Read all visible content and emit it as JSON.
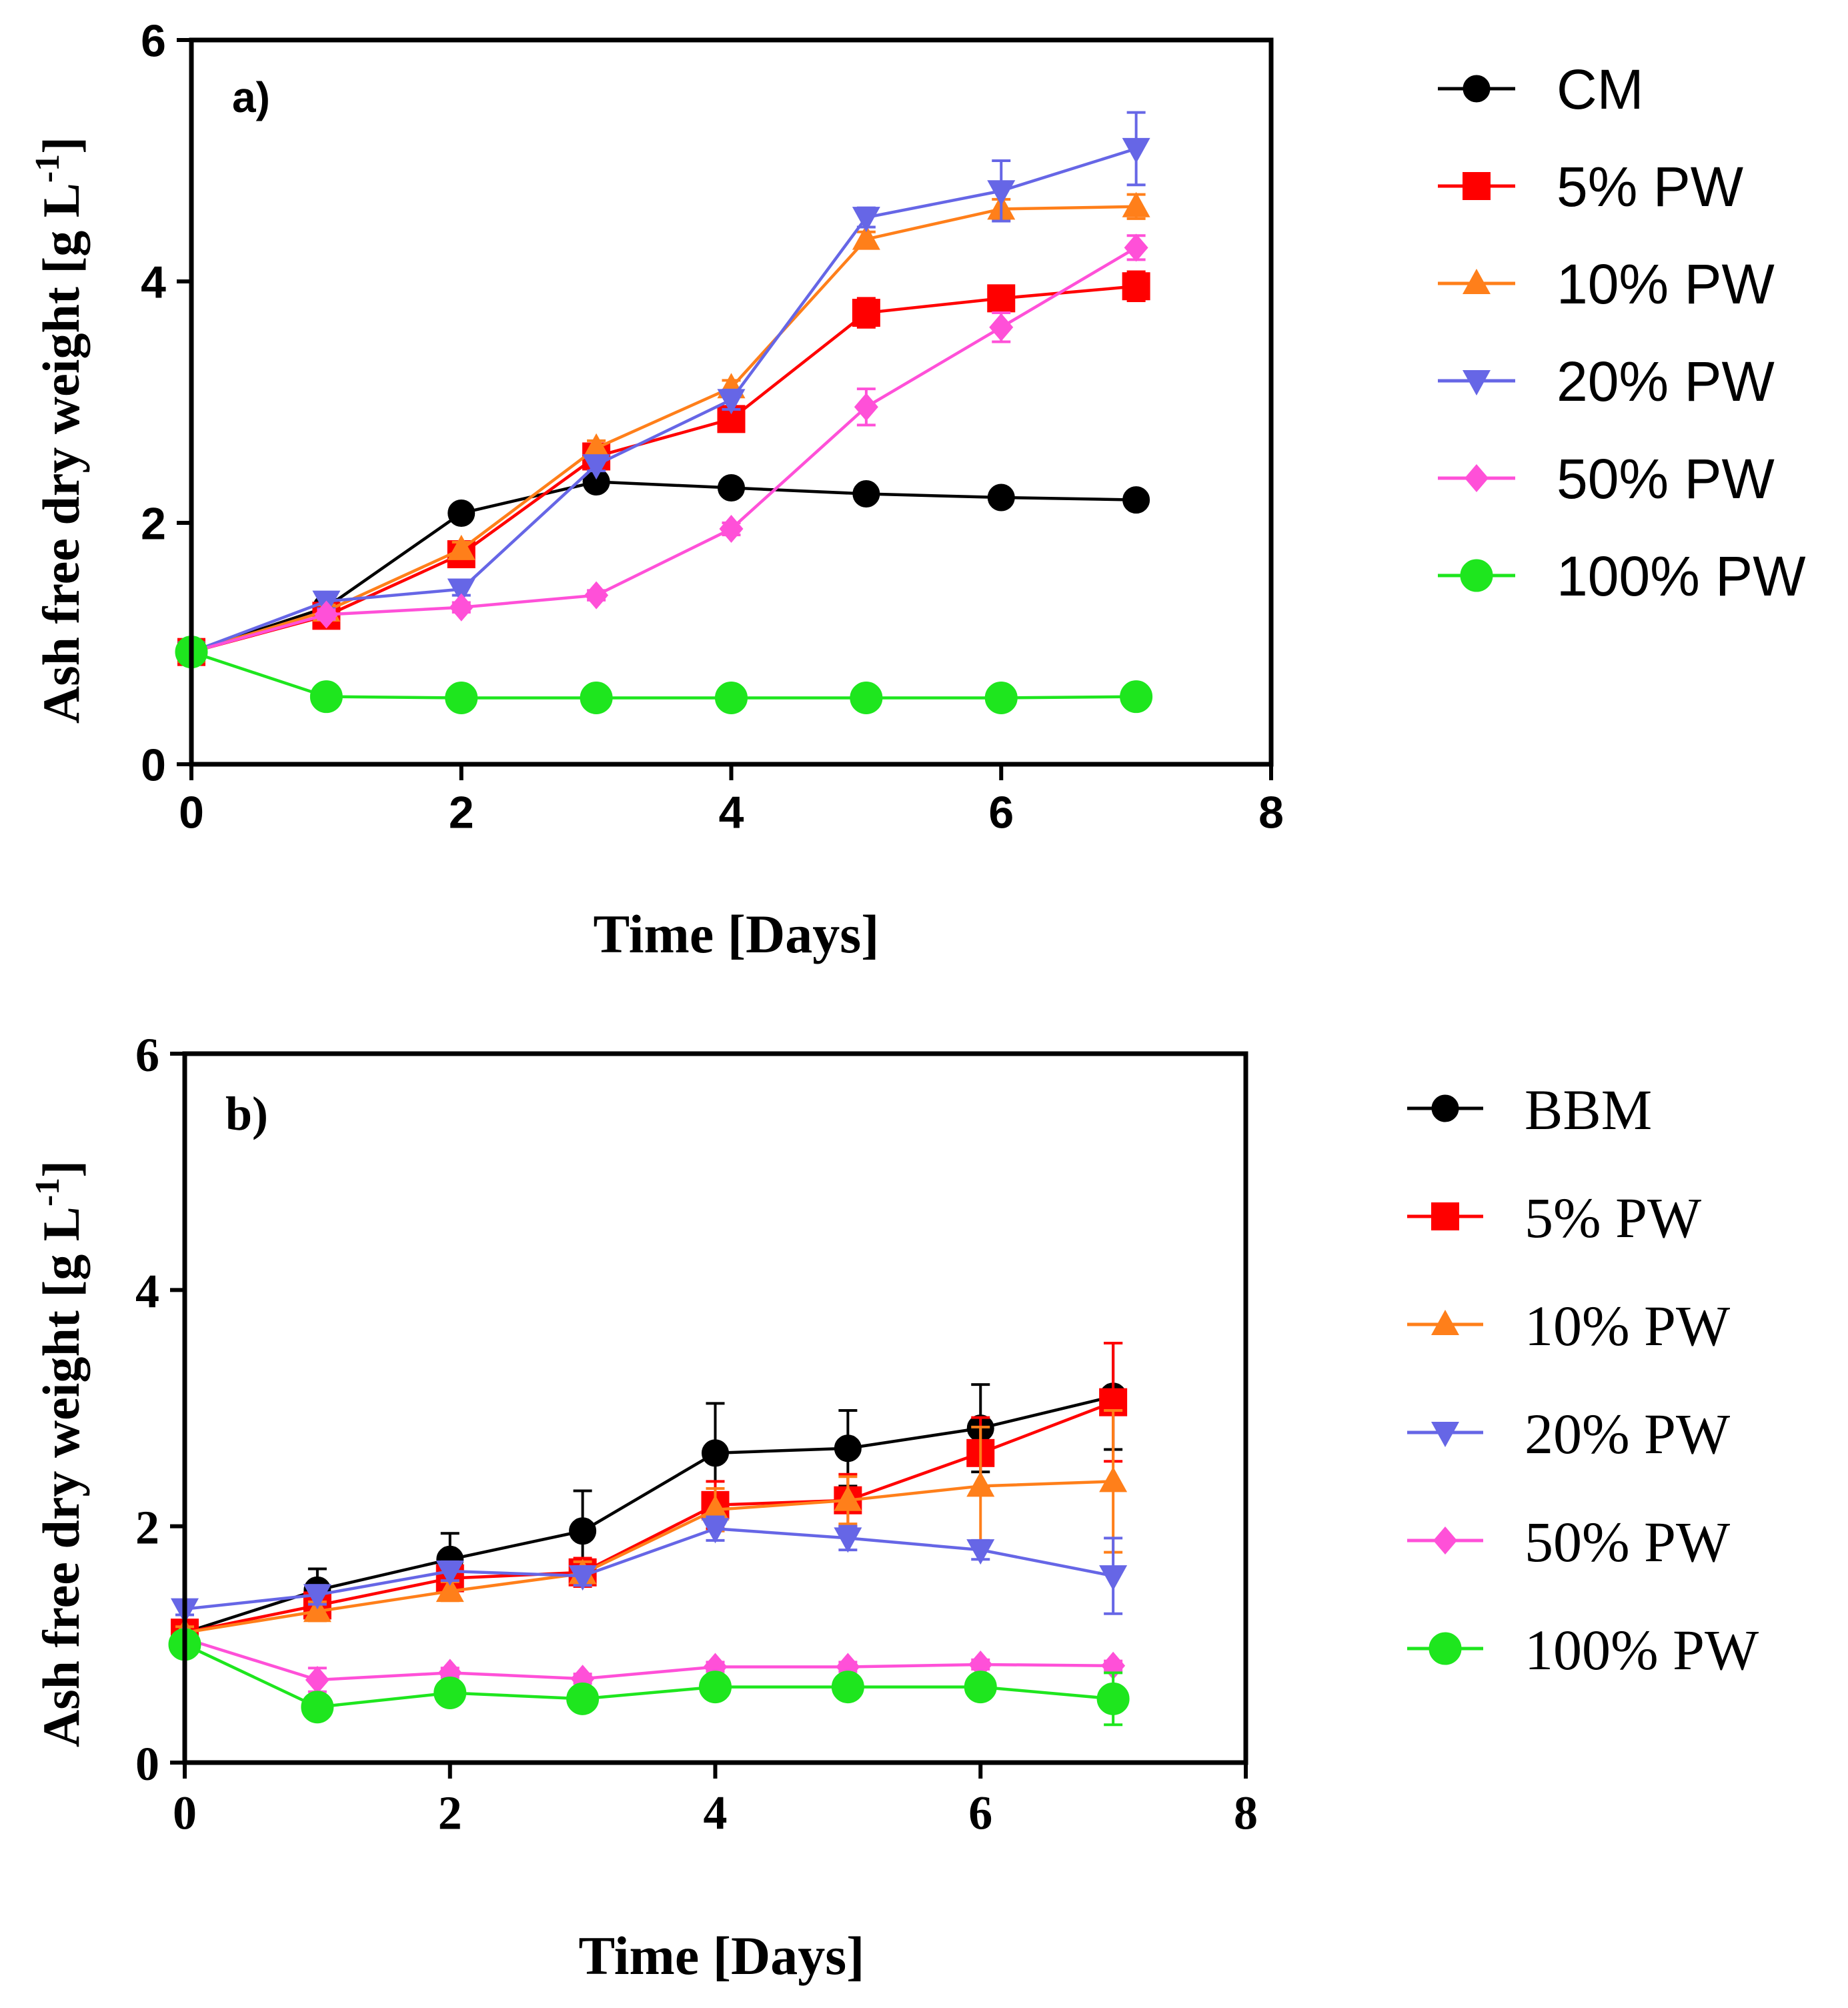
{
  "figure": {
    "chart_data": [
      {
        "type": "line",
        "panel": "a)",
        "title": "",
        "xlabel": "Time [Days]",
        "ylabel": "Ash free dry weight [g L-1]",
        "ylabel_main": "Ash free dry weight [g L",
        "ylabel_sup": "-1",
        "ylabel_end": "]",
        "xlim": [
          0,
          8
        ],
        "ylim": [
          0,
          6
        ],
        "xticks": [
          0,
          2,
          4,
          6,
          8
        ],
        "yticks": [
          0,
          2,
          4,
          6
        ],
        "x": [
          0,
          1,
          2,
          3,
          4,
          5,
          6,
          7
        ],
        "legend_position": "right",
        "series": [
          {
            "name": "CM",
            "color": "#000000",
            "marker": "circle",
            "values": [
              0.93,
              1.3,
              2.08,
              2.34,
              2.29,
              2.24,
              2.21,
              2.19
            ],
            "errors": [
              0.04,
              0.05,
              0.04,
              0.05,
              0.03,
              0.03,
              0.03,
              0.03
            ]
          },
          {
            "name": "5% PW",
            "color": "#ff0000",
            "marker": "square",
            "values": [
              0.93,
              1.23,
              1.74,
              2.55,
              2.86,
              3.74,
              3.86,
              3.96
            ],
            "errors": [
              0.04,
              0.05,
              0.06,
              0.08,
              0.08,
              0.12,
              0.08,
              0.12
            ]
          },
          {
            "name": "10% PW",
            "color": "#ff7f1a",
            "marker": "triangle-up",
            "values": [
              0.93,
              1.27,
              1.78,
              2.62,
              3.12,
              4.35,
              4.6,
              4.62
            ],
            "errors": [
              0.04,
              0.05,
              0.06,
              0.06,
              0.06,
              0.06,
              0.08,
              0.1
            ]
          },
          {
            "name": "20% PW",
            "color": "#6666e6",
            "marker": "triangle-down",
            "values": [
              0.93,
              1.35,
              1.45,
              2.48,
              3.02,
              4.53,
              4.75,
              5.1
            ],
            "errors": [
              0.04,
              0.06,
              0.05,
              0.05,
              0.08,
              0.08,
              0.25,
              0.3
            ]
          },
          {
            "name": "50% PW",
            "color": "#ff50d8",
            "marker": "diamond",
            "values": [
              0.93,
              1.24,
              1.3,
              1.4,
              1.95,
              2.96,
              3.62,
              4.28
            ],
            "errors": [
              0.04,
              0.04,
              0.04,
              0.04,
              0.05,
              0.15,
              0.12,
              0.1
            ]
          },
          {
            "name": "100% PW",
            "color": "#1ee61e",
            "marker": "circle-large",
            "values": [
              0.93,
              0.56,
              0.55,
              0.55,
              0.55,
              0.55,
              0.55,
              0.56
            ],
            "errors": [
              0.02,
              0.02,
              0.02,
              0.02,
              0.02,
              0.02,
              0.02,
              0.02
            ]
          }
        ]
      },
      {
        "type": "line",
        "panel": "b)",
        "title": "",
        "xlabel": "Time [Days]",
        "ylabel": "Ash free dry weight [g L-1]",
        "ylabel_main": "Ash free dry weight [g L",
        "ylabel_sup": "-1",
        "ylabel_end": "]",
        "xlim": [
          0,
          8
        ],
        "ylim": [
          0,
          6
        ],
        "xticks": [
          0,
          2,
          4,
          6,
          8
        ],
        "yticks": [
          0,
          2,
          4,
          6
        ],
        "x": [
          0,
          1,
          2,
          3,
          4,
          5,
          6,
          7
        ],
        "legend_position": "right",
        "series": [
          {
            "name": "BBM",
            "color": "#000000",
            "marker": "circle",
            "values": [
              1.1,
              1.46,
              1.72,
              1.96,
              2.62,
              2.66,
              2.83,
              3.1
            ],
            "errors": [
              0.05,
              0.18,
              0.22,
              0.34,
              0.42,
              0.32,
              0.37,
              0.45
            ]
          },
          {
            "name": "5% PW",
            "color": "#ff0000",
            "marker": "square",
            "values": [
              1.1,
              1.33,
              1.56,
              1.61,
              2.18,
              2.22,
              2.62,
              3.05
            ],
            "errors": [
              0.05,
              0.08,
              0.1,
              0.12,
              0.2,
              0.22,
              0.3,
              0.5
            ]
          },
          {
            "name": "10% PW",
            "color": "#ff7f1a",
            "marker": "triangle-up",
            "values": [
              1.1,
              1.28,
              1.45,
              1.6,
              2.14,
              2.22,
              2.34,
              2.38
            ],
            "errors": [
              0.05,
              0.08,
              0.08,
              0.1,
              0.18,
              0.2,
              0.5,
              0.6
            ]
          },
          {
            "name": "20% PW",
            "color": "#6666e6",
            "marker": "triangle-down",
            "values": [
              1.3,
              1.42,
              1.62,
              1.58,
              1.98,
              1.9,
              1.8,
              1.58
            ],
            "errors": [
              0.05,
              0.08,
              0.08,
              0.08,
              0.1,
              0.1,
              0.08,
              0.32
            ]
          },
          {
            "name": "50% PW",
            "color": "#ff50d8",
            "marker": "diamond",
            "values": [
              1.05,
              0.7,
              0.76,
              0.71,
              0.81,
              0.81,
              0.83,
              0.82
            ],
            "errors": [
              0.03,
              0.1,
              0.04,
              0.04,
              0.04,
              0.04,
              0.04,
              0.04
            ]
          },
          {
            "name": "100% PW",
            "color": "#1ee61e",
            "marker": "circle-large",
            "values": [
              1.0,
              0.47,
              0.59,
              0.54,
              0.64,
              0.64,
              0.64,
              0.54
            ],
            "errors": [
              0.03,
              0.04,
              0.04,
              0.04,
              0.04,
              0.04,
              0.04,
              0.22
            ]
          }
        ]
      }
    ]
  }
}
